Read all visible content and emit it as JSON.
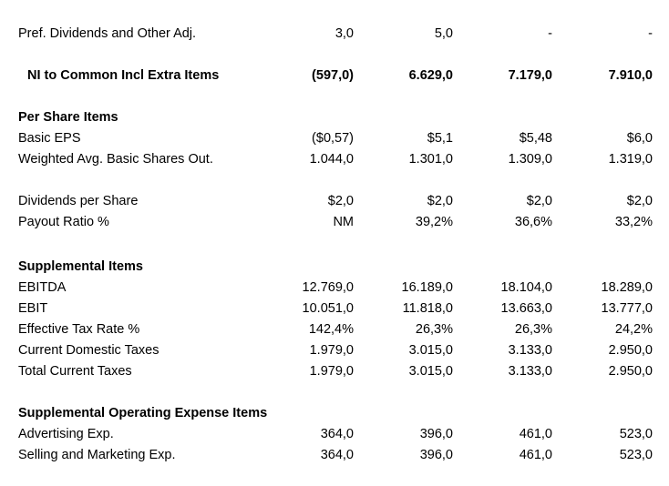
{
  "rows": [
    {
      "label": "Pref. Dividends and Other Adj.",
      "v1": "3,0",
      "v2": "5,0",
      "v3": "-",
      "v4": "-"
    },
    {
      "label": "NI to Common Incl Extra Items",
      "v1": "(597,0)",
      "v2": "6.629,0",
      "v3": "7.179,0",
      "v4": "7.910,0"
    },
    {
      "label": "Per Share Items"
    },
    {
      "label": "Basic EPS",
      "v1": "($0,57)",
      "v2": "$5,1",
      "v3": "$5,48",
      "v4": "$6,0"
    },
    {
      "label": "Weighted Avg. Basic Shares Out.",
      "v1": "1.044,0",
      "v2": "1.301,0",
      "v3": "1.309,0",
      "v4": "1.319,0"
    },
    {
      "label": "Dividends per Share",
      "v1": "$2,0",
      "v2": "$2,0",
      "v3": "$2,0",
      "v4": "$2,0"
    },
    {
      "label": "Payout Ratio %",
      "v1": "NM",
      "v2": "39,2%",
      "v3": "36,6%",
      "v4": "33,2%"
    },
    {
      "label": "Supplemental Items"
    },
    {
      "label": "EBITDA",
      "v1": "12.769,0",
      "v2": "16.189,0",
      "v3": "18.104,0",
      "v4": "18.289,0"
    },
    {
      "label": "EBIT",
      "v1": "10.051,0",
      "v2": "11.818,0",
      "v3": "13.663,0",
      "v4": "13.777,0"
    },
    {
      "label": "Effective Tax Rate %",
      "v1": "142,4%",
      "v2": "26,3%",
      "v3": "26,3%",
      "v4": "24,2%"
    },
    {
      "label": "Current Domestic Taxes",
      "v1": "1.979,0",
      "v2": "3.015,0",
      "v3": "3.133,0",
      "v4": "2.950,0"
    },
    {
      "label": "Total Current Taxes",
      "v1": "1.979,0",
      "v2": "3.015,0",
      "v3": "3.133,0",
      "v4": "2.950,0"
    },
    {
      "label": "Supplemental Operating Expense Items"
    },
    {
      "label": "Advertising Exp.",
      "v1": "364,0",
      "v2": "396,0",
      "v3": "461,0",
      "v4": "523,0"
    },
    {
      "label": "Selling and Marketing Exp.",
      "v1": "364,0",
      "v2": "396,0",
      "v3": "461,0",
      "v4": "523,0"
    }
  ]
}
